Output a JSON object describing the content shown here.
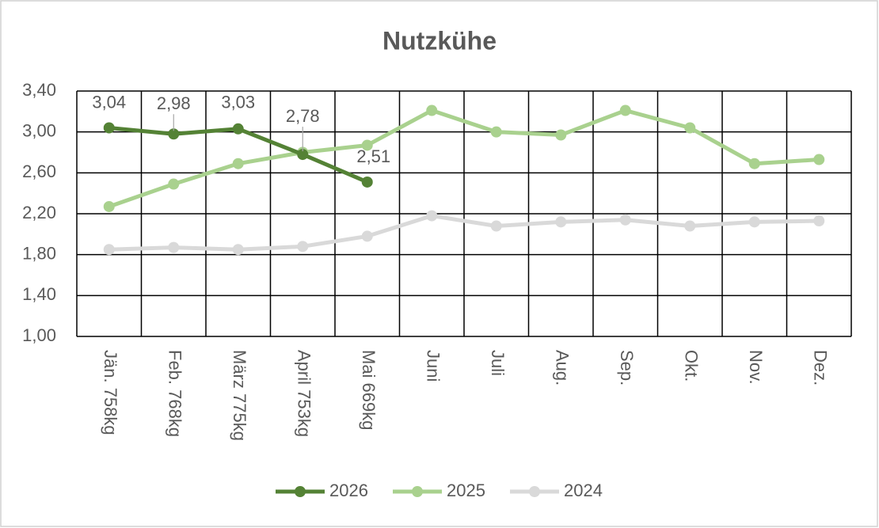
{
  "chart_data": {
    "type": "line",
    "title": "Nutzkühe",
    "categories": [
      "Jän. 758kg",
      "Feb. 768kg",
      "März 775kg",
      "April 753kg",
      "Mai 669kg",
      "Juni",
      "Juli",
      "Aug.",
      "Sep.",
      "Okt.",
      "Nov.",
      "Dez."
    ],
    "series": [
      {
        "name": "2026",
        "color": "#548235",
        "values": [
          3.04,
          2.98,
          3.03,
          2.78,
          2.51,
          null,
          null,
          null,
          null,
          null,
          null,
          null
        ],
        "value_labels": [
          "3,04",
          "2,98",
          "3,03",
          "2,78",
          "2,51",
          null,
          null,
          null,
          null,
          null,
          null,
          null
        ]
      },
      {
        "name": "2025",
        "color": "#a9d18e",
        "values": [
          2.27,
          2.49,
          2.69,
          2.8,
          2.87,
          3.21,
          3.0,
          2.97,
          3.21,
          3.04,
          2.69,
          2.73
        ]
      },
      {
        "name": "2024",
        "color": "#d9d9d9",
        "values": [
          1.85,
          1.87,
          1.85,
          1.88,
          1.98,
          2.18,
          2.08,
          2.12,
          2.14,
          2.08,
          2.12,
          2.13
        ]
      }
    ],
    "ylim": [
      1.0,
      3.4
    ],
    "yticks": [
      {
        "value": 1.0,
        "label": "1,00"
      },
      {
        "value": 1.4,
        "label": "1,40"
      },
      {
        "value": 1.8,
        "label": "1,80"
      },
      {
        "value": 2.2,
        "label": "2,20"
      },
      {
        "value": 2.6,
        "label": "2,60"
      },
      {
        "value": 3.0,
        "label": "3,00"
      },
      {
        "value": 3.4,
        "label": "3,40"
      }
    ],
    "grid": true,
    "legend": "bottom"
  }
}
